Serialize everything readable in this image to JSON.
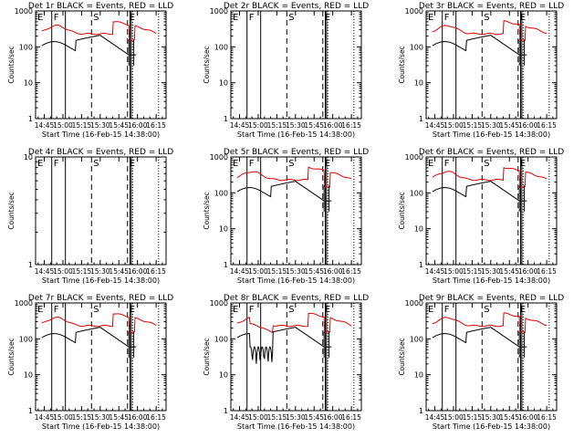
{
  "colors": {
    "events": "#000000",
    "lld": "#e00000",
    "background": "#ffffff",
    "axes": "#000000"
  },
  "chart_data": [
    {
      "type": "line",
      "title": "Det 1r BLACK = Events, RED = LLD",
      "xlabel": "Start Time (16-Feb-15 14:38:00)",
      "ylabel": "Counts/sec",
      "xticks": [
        "14:45",
        "15:00",
        "15:15",
        "15:30",
        "15:45",
        "16:00",
        "16:15"
      ],
      "yticks": [
        "1",
        "10",
        "100",
        "1000"
      ],
      "ylim": [
        1,
        1000
      ],
      "yscale": "log",
      "markers": [
        {
          "label": "E",
          "t": "14:38"
        },
        {
          "label": "F",
          "t": "14:51"
        },
        {
          "label": "S",
          "t": "15:23"
        },
        {
          "label": "E",
          "t": "15:52"
        }
      ],
      "series": [
        {
          "name": "Events",
          "has_data": true
        },
        {
          "name": "LLD",
          "has_data": true
        }
      ]
    },
    {
      "type": "line",
      "title": "Det 2r BLACK = Events, RED = LLD",
      "xlabel": "Start Time (16-Feb-15 14:38:00)",
      "ylabel": "Counts/sec",
      "xticks": [
        "14:45",
        "15:00",
        "15:15",
        "15:30",
        "15:45",
        "16:00",
        "16:15"
      ],
      "yticks": [
        "1",
        "10",
        "100",
        "1000"
      ],
      "ylim": [
        1,
        1000
      ],
      "yscale": "log",
      "markers": [
        {
          "label": "E",
          "t": "14:38"
        },
        {
          "label": "F",
          "t": "14:51"
        },
        {
          "label": "S",
          "t": "15:23"
        },
        {
          "label": "E",
          "t": "15:52"
        }
      ],
      "series": [
        {
          "name": "Events",
          "has_data": false
        },
        {
          "name": "LLD",
          "has_data": false
        }
      ]
    },
    {
      "type": "line",
      "title": "Det 3r BLACK = Events, RED = LLD",
      "xlabel": "Start Time (16-Feb-15 14:38:00)",
      "ylabel": "Counts/sec",
      "xticks": [
        "14:45",
        "15:00",
        "15:15",
        "15:30",
        "15:45",
        "16:00",
        "16:15"
      ],
      "yticks": [
        "1",
        "10",
        "100",
        "1000"
      ],
      "ylim": [
        1,
        1000
      ],
      "yscale": "log",
      "markers": [
        {
          "label": "E",
          "t": "14:38"
        },
        {
          "label": "F",
          "t": "14:51"
        },
        {
          "label": "S",
          "t": "15:23"
        },
        {
          "label": "E",
          "t": "15:52"
        }
      ],
      "series": [
        {
          "name": "Events",
          "has_data": true
        },
        {
          "name": "LLD",
          "has_data": true
        }
      ]
    },
    {
      "type": "line",
      "title": "Det 4r BLACK = Events, RED = LLD",
      "xlabel": "Start Time (16-Feb-15 14:38:00)",
      "ylabel": "Counts/sec",
      "xticks": [
        "14:45",
        "15:00",
        "15:15",
        "15:30",
        "15:45",
        "16:00",
        "16:15"
      ],
      "yticks": [
        "1",
        "10"
      ],
      "ylim": [
        1,
        10
      ],
      "yscale": "log",
      "markers": [
        {
          "label": "E",
          "t": "14:38"
        },
        {
          "label": "F",
          "t": "14:51"
        },
        {
          "label": "S",
          "t": "15:23"
        },
        {
          "label": "E",
          "t": "15:52"
        }
      ],
      "series": [
        {
          "name": "Events",
          "has_data": false
        },
        {
          "name": "LLD",
          "has_data": false
        }
      ]
    },
    {
      "type": "line",
      "title": "Det 5r BLACK = Events, RED = LLD",
      "xlabel": "Start Time (16-Feb-15 14:38:00)",
      "ylabel": "Counts/sec",
      "xticks": [
        "14:45",
        "15:00",
        "15:15",
        "15:30",
        "15:45",
        "16:00",
        "16:15"
      ],
      "yticks": [
        "1",
        "10",
        "100",
        "1000"
      ],
      "ylim": [
        1,
        1000
      ],
      "yscale": "log",
      "markers": [
        {
          "label": "E",
          "t": "14:38"
        },
        {
          "label": "F",
          "t": "14:51"
        },
        {
          "label": "S",
          "t": "15:23"
        },
        {
          "label": "E",
          "t": "15:52"
        }
      ],
      "series": [
        {
          "name": "Events",
          "has_data": true
        },
        {
          "name": "LLD",
          "has_data": true
        }
      ]
    },
    {
      "type": "line",
      "title": "Det 6r BLACK = Events, RED = LLD",
      "xlabel": "Start Time (16-Feb-15 14:38:00)",
      "ylabel": "Counts/sec",
      "xticks": [
        "14:45",
        "15:00",
        "15:15",
        "15:30",
        "15:45",
        "16:00",
        "16:15"
      ],
      "yticks": [
        "1",
        "10",
        "100",
        "1000"
      ],
      "ylim": [
        1,
        1000
      ],
      "yscale": "log",
      "markers": [
        {
          "label": "E",
          "t": "14:38"
        },
        {
          "label": "F",
          "t": "14:51"
        },
        {
          "label": "S",
          "t": "15:23"
        },
        {
          "label": "E",
          "t": "15:52"
        }
      ],
      "series": [
        {
          "name": "Events",
          "has_data": true
        },
        {
          "name": "LLD",
          "has_data": true
        }
      ]
    },
    {
      "type": "line",
      "title": "Det 7r BLACK = Events, RED = LLD",
      "xlabel": "Start Time (16-Feb-15 14:38:00)",
      "ylabel": "Counts/sec",
      "xticks": [
        "14:45",
        "15:00",
        "15:15",
        "15:30",
        "15:45",
        "16:00",
        "16:15"
      ],
      "yticks": [
        "1",
        "10",
        "100",
        "1000"
      ],
      "ylim": [
        1,
        1000
      ],
      "yscale": "log",
      "markers": [
        {
          "label": "E",
          "t": "14:38"
        },
        {
          "label": "F",
          "t": "14:51"
        },
        {
          "label": "S",
          "t": "15:23"
        },
        {
          "label": "E",
          "t": "15:52"
        }
      ],
      "series": [
        {
          "name": "Events",
          "has_data": true
        },
        {
          "name": "LLD",
          "has_data": true
        }
      ]
    },
    {
      "type": "line",
      "title": "Det 8r BLACK = Events, RED = LLD",
      "xlabel": "Start Time (16-Feb-15 14:38:00)",
      "ylabel": "Counts/sec",
      "xticks": [
        "14:45",
        "15:00",
        "15:15",
        "15:30",
        "15:45",
        "16:00",
        "16:15"
      ],
      "yticks": [
        "1",
        "10",
        "100",
        "1000"
      ],
      "ylim": [
        1,
        1000
      ],
      "yscale": "log",
      "markers": [
        {
          "label": "E",
          "t": "14:38"
        },
        {
          "label": "F",
          "t": "14:51"
        },
        {
          "label": "S",
          "t": "15:23"
        },
        {
          "label": "E",
          "t": "15:52"
        }
      ],
      "series": [
        {
          "name": "Events",
          "has_data": true
        },
        {
          "name": "LLD",
          "has_data": true
        }
      ]
    },
    {
      "type": "line",
      "title": "Det 9r BLACK = Events, RED = LLD",
      "xlabel": "Start Time (16-Feb-15 14:38:00)",
      "ylabel": "Counts/sec",
      "xticks": [
        "14:45",
        "15:00",
        "15:15",
        "15:30",
        "15:45",
        "16:00",
        "16:15"
      ],
      "yticks": [
        "1",
        "10",
        "100",
        "1000"
      ],
      "ylim": [
        1,
        1000
      ],
      "yscale": "log",
      "markers": [
        {
          "label": "E",
          "t": "14:38"
        },
        {
          "label": "F",
          "t": "14:51"
        },
        {
          "label": "S",
          "t": "15:23"
        },
        {
          "label": "E",
          "t": "15:52"
        }
      ],
      "series": [
        {
          "name": "Events",
          "has_data": true
        },
        {
          "name": "LLD",
          "has_data": true
        }
      ]
    }
  ]
}
